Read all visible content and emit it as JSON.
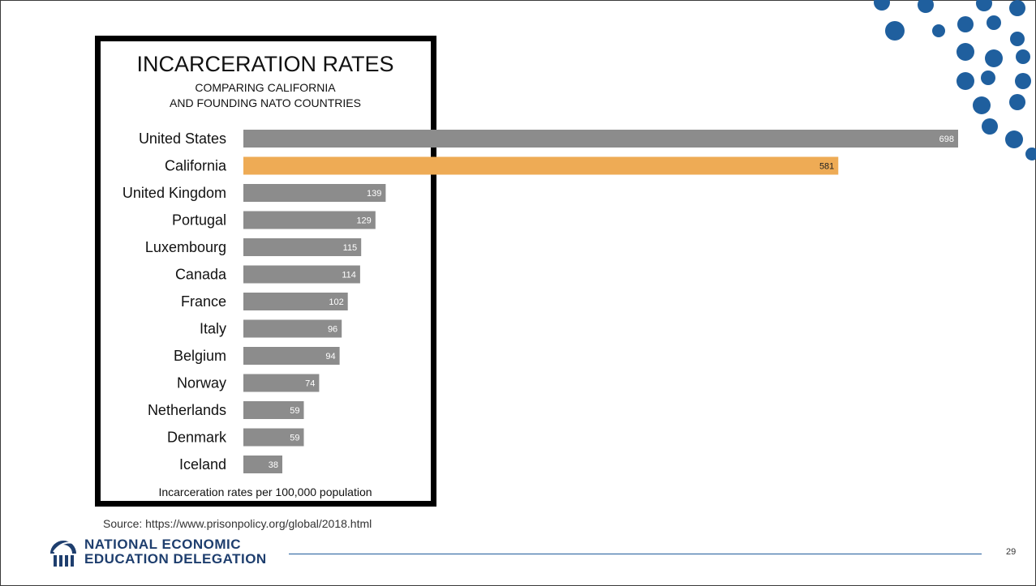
{
  "slide": {
    "source": "Source: https://www.prisonpolicy.org/global/2018.html",
    "org_line1": "NATIONAL ECONOMIC",
    "org_line2": "EDUCATION DELEGATION",
    "page_number": "29",
    "logo_icon": "columns-logo-icon",
    "decor_icon": "dot-pattern-icon",
    "colors": {
      "accent_dots": "#1f5f9e",
      "footer_text": "#1e3e6e",
      "footer_rule": "#1e5a9a"
    }
  },
  "chart_data": {
    "type": "bar",
    "orientation": "horizontal",
    "title": "INCARCERATION RATES",
    "subtitle_lines": [
      "COMPARING CALIFORNIA",
      "AND FOUNDING NATO COUNTRIES"
    ],
    "xlabel": "Incarceration rates per 100,000 population",
    "categories": [
      "United States",
      "California",
      "United Kingdom",
      "Portugal",
      "Luxembourg",
      "Canada",
      "France",
      "Italy",
      "Belgium",
      "Norway",
      "Netherlands",
      "Denmark",
      "Iceland"
    ],
    "values": [
      698,
      581,
      139,
      129,
      115,
      114,
      102,
      96,
      94,
      74,
      59,
      59,
      38
    ],
    "highlight": "California",
    "colors": {
      "default": "#8c8c8c",
      "highlight": "#eeab55",
      "panel_border": "#000000"
    },
    "xlim": [
      0,
      698
    ],
    "grid": false,
    "legend": "none"
  }
}
